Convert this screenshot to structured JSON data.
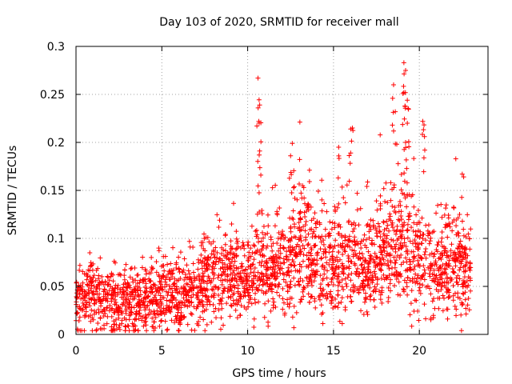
{
  "chart_data": {
    "type": "scatter",
    "title": "Day 103 of 2020, SRMTID for receiver mall",
    "xlabel": "GPS time / hours",
    "ylabel": "SRMTID / TECUs",
    "xlim": [
      0,
      24
    ],
    "ylim": [
      0,
      0.3
    ],
    "xticks": [
      0,
      5,
      10,
      15,
      20
    ],
    "xtick_labels": [
      "0",
      "5",
      "10",
      "15",
      "20"
    ],
    "yticks": [
      0,
      0.05,
      0.1,
      0.15,
      0.2,
      0.25,
      0.3
    ],
    "ytick_labels": [
      "0",
      "0.05",
      "0.1",
      "0.15",
      "0.2",
      "0.25",
      "0.3"
    ],
    "grid": true,
    "marker": "+",
    "color": "#ff0000",
    "series": [
      {
        "name": "SRMTID",
        "x_range": [
          0.0,
          23.0
        ],
        "trend_hours": [
          0,
          1,
          2,
          3,
          4,
          5,
          6,
          7,
          8,
          9,
          10,
          11,
          12,
          13,
          14,
          15,
          16,
          17,
          18,
          19,
          20,
          21,
          22,
          23
        ],
        "trend_values": [
          0.03,
          0.04,
          0.035,
          0.03,
          0.035,
          0.045,
          0.04,
          0.045,
          0.06,
          0.055,
          0.06,
          0.075,
          0.065,
          0.09,
          0.075,
          0.075,
          0.075,
          0.065,
          0.085,
          0.095,
          0.08,
          0.065,
          0.07,
          0.07
        ],
        "peaks": [
          {
            "x": 10.6,
            "y": 0.267
          },
          {
            "x": 10.7,
            "y": 0.239
          },
          {
            "x": 10.65,
            "y": 0.222
          },
          {
            "x": 10.7,
            "y": 0.191
          },
          {
            "x": 12.6,
            "y": 0.199
          },
          {
            "x": 12.5,
            "y": 0.186
          },
          {
            "x": 13.6,
            "y": 0.171
          },
          {
            "x": 15.3,
            "y": 0.195
          },
          {
            "x": 16.1,
            "y": 0.215
          },
          {
            "x": 16.0,
            "y": 0.189
          },
          {
            "x": 18.5,
            "y": 0.26
          },
          {
            "x": 18.6,
            "y": 0.232
          },
          {
            "x": 19.1,
            "y": 0.283
          },
          {
            "x": 19.2,
            "y": 0.275
          },
          {
            "x": 19.1,
            "y": 0.252
          },
          {
            "x": 19.3,
            "y": 0.244
          },
          {
            "x": 19.3,
            "y": 0.22
          },
          {
            "x": 19.2,
            "y": 0.2
          },
          {
            "x": 20.2,
            "y": 0.222
          },
          {
            "x": 20.3,
            "y": 0.206
          },
          {
            "x": 22.5,
            "y": 0.167
          }
        ]
      }
    ]
  }
}
